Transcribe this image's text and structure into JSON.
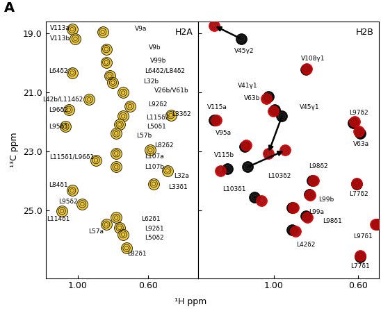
{
  "panel_label": "A",
  "x_label": "¹H ppm",
  "chart_data": [
    {
      "type": "scatter",
      "title": "H2A",
      "y_label": "¹³C ppm",
      "xlim": [
        1.18,
        0.32
      ],
      "ylim": [
        27.3,
        18.6
      ],
      "xticks": [
        {
          "value": 1.0,
          "label": "1.00"
        },
        {
          "value": 0.6,
          "label": "0.60"
        }
      ],
      "yticks": [
        {
          "value": 19.0,
          "label": "19.0"
        },
        {
          "value": 21.0,
          "label": "21.0"
        },
        {
          "value": 23.0,
          "label": "23.0"
        },
        {
          "value": 25.0,
          "label": "25.0"
        }
      ],
      "labels": [
        "V113a",
        "V113b",
        "V9a",
        "V9b",
        "V99b",
        "L64δ2",
        "L64δ2/L84δ2",
        "L32b",
        "V26b/V61b",
        "L42b/L114δ2",
        "L92δ2",
        "L33δ2",
        "L96δ2",
        "L115δ2",
        "L50δ1",
        "L95δ1",
        "L57b",
        "L82δ2",
        "L107a",
        "L115δ1/L96δ1",
        "L107b",
        "L33δ1",
        "L32a",
        "L84δ1",
        "L114δ1",
        "L95δ2",
        "L62δ1",
        "L92δ1",
        "L57a",
        "L50δ2",
        "L82δ1"
      ],
      "series": [
        {
          "color": "#f0c828",
          "x": [
            1.031,
            1.012,
            0.858,
            0.838,
            0.838,
            1.031,
            0.819,
            0.8,
            0.742,
            0.935,
            0.704,
            0.473,
            1.05,
            0.742,
            0.762,
            1.069,
            0.781,
            0.588,
            0.781,
            0.896,
            0.781,
            0.569,
            0.492,
            1.031,
            1.088,
            0.973,
            0.781,
            0.762,
            0.838,
            0.742,
            0.723
          ],
          "y": [
            18.86,
            19.18,
            18.95,
            19.53,
            19.98,
            20.33,
            20.44,
            20.67,
            21.01,
            21.24,
            21.47,
            21.77,
            21.59,
            21.81,
            22.09,
            22.16,
            22.39,
            22.96,
            23.07,
            23.3,
            23.53,
            24.1,
            23.65,
            24.33,
            25.02,
            24.79,
            25.25,
            25.59,
            25.48,
            25.82,
            26.28
          ]
        }
      ]
    },
    {
      "type": "scatter",
      "title": "H2B",
      "tick_labels": "x",
      "xlim": [
        1.36,
        0.5
      ],
      "ylim": [
        27.3,
        18.6
      ],
      "xticks": [
        {
          "value": 1.0,
          "label": "1.00"
        },
        {
          "value": 0.6,
          "label": "0.60"
        }
      ],
      "yticks": [
        {
          "value": 19.0,
          "label": "19.0"
        },
        {
          "value": 21.0,
          "label": "21.0"
        },
        {
          "value": 23.0,
          "label": "23.0"
        },
        {
          "value": 25.0,
          "label": "25.0"
        }
      ],
      "labels": [
        "V45γ2",
        "V108γ1",
        "V41γ1",
        "V63b",
        "V45γ1",
        "V115a",
        "L97δ2",
        "V63a",
        "V95a",
        "V115b",
        "L103δ2",
        "L98δ2",
        "L77δ2",
        "L103δ1",
        "L99b",
        "L99a",
        "L98δ1",
        "L97δ1",
        "L42δ2",
        "L77δ1"
      ],
      "series": [
        {
          "color": "#000000",
          "x": [
            1.155,
            0.848,
            1.026,
            0.994,
            0.961,
            1.284,
            0.623,
            0.59,
            1.139,
            1.219,
            1.123,
            0.816,
            0.606,
            1.09,
            0.832,
            0.913,
            0.848,
            0.51,
            0.913,
            0.59
          ],
          "y": [
            19.18,
            20.21,
            21.13,
            21.59,
            21.81,
            21.93,
            22.04,
            22.39,
            22.84,
            23.6,
            23.53,
            23.99,
            24.1,
            24.56,
            24.45,
            24.9,
            25.2,
            25.48,
            25.66,
            26.57
          ]
        },
        {
          "color": "#d10000",
          "x": [
            1.284,
            0.845,
            1.035,
            1.003,
            1.026,
            1.274,
            0.616,
            0.597,
            1.132,
            1.252,
            0.945,
            0.81,
            0.606,
            1.058,
            0.826,
            0.906,
            0.842,
            0.516,
            0.897,
            0.59
          ],
          "y": [
            18.73,
            20.19,
            21.2,
            21.63,
            23.07,
            21.93,
            22.0,
            22.32,
            22.8,
            23.65,
            22.96,
            23.99,
            24.08,
            24.68,
            24.49,
            24.9,
            25.25,
            25.48,
            25.71,
            26.53
          ]
        }
      ]
    }
  ]
}
